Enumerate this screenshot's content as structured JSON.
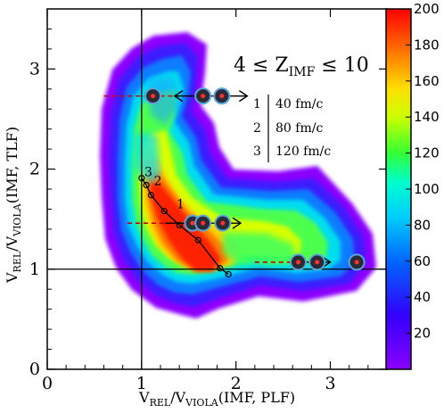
{
  "chart_data": {
    "type": "heatmap",
    "title": "",
    "annotation": {
      "lhs": "4 ≤ Z",
      "sub": "IMF",
      "rhs": " ≤ 10"
    },
    "xlabel": {
      "main": "V",
      "sub1": "REL",
      "mid": "/V",
      "sub2": "VIOLA",
      "tail": "(IMF, PLF)"
    },
    "ylabel": {
      "main": "V",
      "sub1": "REL",
      "mid": "/V",
      "sub2": "VIOLA",
      "tail": "(IMF, TLF)"
    },
    "xlim": [
      0,
      3.6
    ],
    "ylim": [
      0,
      3.6
    ],
    "xticks": [
      0,
      1,
      2,
      3
    ],
    "yticks": [
      0,
      1,
      2,
      3
    ],
    "reference_lines": {
      "x": 1,
      "y": 1
    },
    "colorbar": {
      "min": 0,
      "max": 200,
      "ticks": [
        20,
        40,
        60,
        80,
        100,
        120,
        140,
        160,
        180,
        200
      ]
    },
    "trajectory": {
      "points": [
        {
          "x": 1.0,
          "y": 1.91
        },
        {
          "x": 1.05,
          "y": 1.84
        },
        {
          "x": 1.1,
          "y": 1.74
        },
        {
          "x": 1.24,
          "y": 1.58
        },
        {
          "x": 1.4,
          "y": 1.44
        },
        {
          "x": 1.6,
          "y": 1.29
        },
        {
          "x": 1.83,
          "y": 1.01
        },
        {
          "x": 1.92,
          "y": 0.95
        }
      ],
      "labels": [
        {
          "text": "3",
          "x": 1.03,
          "y": 1.93
        },
        {
          "text": "2",
          "x": 1.13,
          "y": 1.84
        },
        {
          "text": "1",
          "x": 1.37,
          "y": 1.61
        }
      ]
    },
    "legend": [
      {
        "num": "1",
        "time": "40 fm/c"
      },
      {
        "num": "2",
        "time": "80 fm/c"
      },
      {
        "num": "3",
        "time": "120 fm/c"
      }
    ],
    "arrows": [
      {
        "y": 2.73,
        "dash_from": 0.6,
        "dash_to": 1.35,
        "arrow_from": 1.35,
        "arrow_to": 2.12,
        "markers": [
          1.12,
          1.65,
          1.85
        ]
      },
      {
        "y": 1.46,
        "dash_from": 0.85,
        "dash_to": 1.25,
        "arrow_from": 1.25,
        "arrow_to": 2.05,
        "markers": [
          1.54,
          1.65,
          1.86
        ]
      },
      {
        "y": 1.07,
        "dash_from": 2.2,
        "dash_to": 2.6,
        "arrow_from": 2.6,
        "arrow_to": 3.0,
        "markers": [
          2.66,
          2.86,
          3.28
        ]
      }
    ],
    "colors": {
      "background": "#ffffff",
      "dashed_line": "#cc0000",
      "marker_fill": "#2b2b38",
      "marker_ring": "#5aa6d8"
    }
  }
}
